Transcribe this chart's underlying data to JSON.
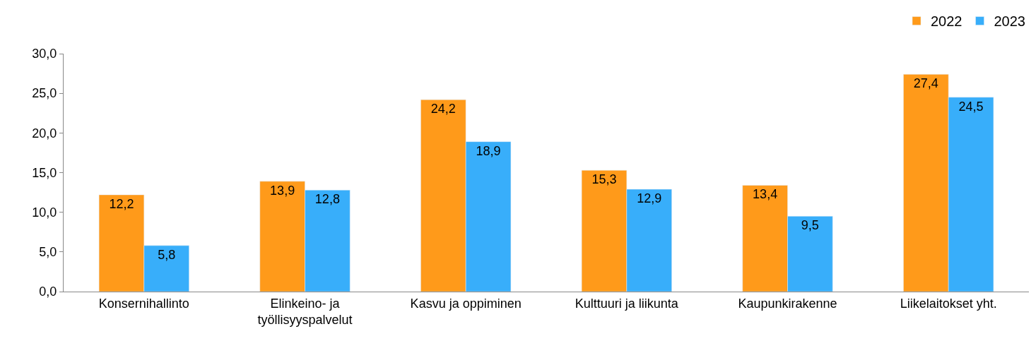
{
  "chart_data": {
    "type": "bar",
    "categories": [
      "Konsernihallinto",
      "Elinkeino- ja\ntyöllisyyspalvelut",
      "Kasvu ja oppiminen",
      "Kulttuuri ja liikunta",
      "Kaupunkirakenne",
      "Liikelaitokset yht."
    ],
    "series": [
      {
        "name": "2022",
        "color": "#ff9a1a",
        "values": [
          12.2,
          13.9,
          24.2,
          15.3,
          13.4,
          27.4
        ],
        "value_labels": [
          "12,2",
          "13,9",
          "24,2",
          "15,3",
          "13,4",
          "27,4"
        ]
      },
      {
        "name": "2023",
        "color": "#38aefa",
        "values": [
          5.8,
          12.8,
          18.9,
          12.9,
          9.5,
          24.5
        ],
        "value_labels": [
          "5,8",
          "12,8",
          "18,9",
          "12,9",
          "9,5",
          "24,5"
        ]
      }
    ],
    "ylim": [
      0,
      30
    ],
    "yticks": [
      {
        "value": 0,
        "label": "0,0"
      },
      {
        "value": 5,
        "label": "5,0"
      },
      {
        "value": 10,
        "label": "10,0"
      },
      {
        "value": 15,
        "label": "15,0"
      },
      {
        "value": 20,
        "label": "20,0"
      },
      {
        "value": 25,
        "label": "25,0"
      },
      {
        "value": 30,
        "label": "30,0"
      }
    ],
    "legend": "top right"
  }
}
